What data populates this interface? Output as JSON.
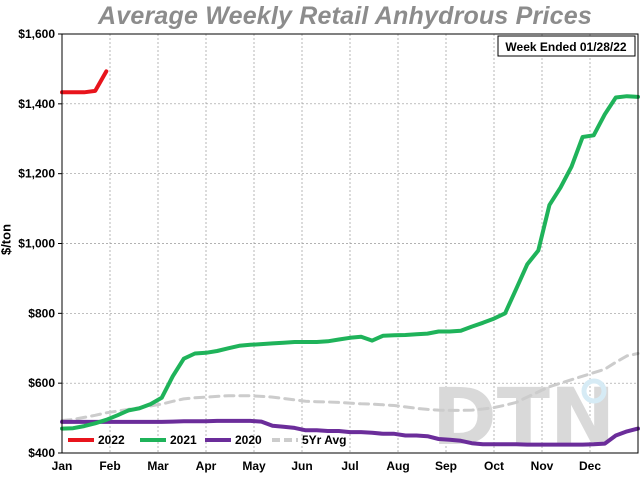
{
  "chart_data": {
    "type": "line",
    "title": "Average Weekly Retail Anhydrous Prices",
    "subtitle": "Week Ended 01/28/22",
    "ylabel": "$/ton",
    "xlabel": "",
    "ylim": [
      400,
      1600
    ],
    "y_ticks": [
      "$400",
      "$600",
      "$800",
      "$1,000",
      "$1,200",
      "$1,400",
      "$1,600"
    ],
    "y_tick_values": [
      400,
      600,
      800,
      1000,
      1200,
      1400,
      1600
    ],
    "x_ticks": [
      "Jan",
      "Feb",
      "Mar",
      "Apr",
      "May",
      "Jun",
      "Jul",
      "Aug",
      "Sep",
      "Oct",
      "Nov",
      "Dec"
    ],
    "x_range_weeks": [
      1,
      53
    ],
    "grid": true,
    "legend_position": "bottom-left",
    "watermark": "DTN",
    "series": [
      {
        "name": "2022",
        "color": "#e8141c",
        "dashed": false,
        "x": [
          1,
          2,
          3,
          4,
          5
        ],
        "values": [
          1433,
          1433,
          1433,
          1437,
          1493
        ]
      },
      {
        "name": "2021",
        "color": "#1fb35a",
        "dashed": false,
        "x": [
          1,
          2,
          3,
          4,
          5,
          6,
          7,
          8,
          9,
          10,
          11,
          12,
          13,
          14,
          15,
          16,
          17,
          18,
          19,
          20,
          21,
          22,
          23,
          24,
          25,
          26,
          27,
          28,
          29,
          30,
          31,
          32,
          33,
          34,
          35,
          36,
          37,
          38,
          39,
          40,
          41,
          42,
          43,
          44,
          45,
          46,
          47,
          48,
          49,
          50,
          51,
          52,
          53
        ],
        "values": [
          470,
          471,
          477,
          485,
          495,
          508,
          522,
          528,
          540,
          558,
          620,
          670,
          685,
          687,
          692,
          700,
          707,
          710,
          712,
          714,
          716,
          718,
          718,
          718,
          720,
          725,
          730,
          733,
          722,
          736,
          737,
          738,
          740,
          742,
          748,
          748,
          750,
          762,
          773,
          785,
          800,
          870,
          940,
          980,
          1110,
          1160,
          1220,
          1305,
          1310,
          1370,
          1418,
          1422,
          1420
        ]
      },
      {
        "name": "2020",
        "color": "#6b2d9a",
        "dashed": false,
        "x": [
          1,
          2,
          3,
          4,
          5,
          6,
          7,
          8,
          9,
          10,
          11,
          12,
          13,
          14,
          15,
          16,
          17,
          18,
          19,
          20,
          21,
          22,
          23,
          24,
          25,
          26,
          27,
          28,
          29,
          30,
          31,
          32,
          33,
          34,
          35,
          36,
          37,
          38,
          39,
          40,
          41,
          42,
          43,
          44,
          45,
          46,
          47,
          48,
          49,
          50,
          51,
          52,
          53
        ],
        "values": [
          489,
          489,
          489,
          489,
          489,
          489,
          489,
          489,
          489,
          489,
          490,
          491,
          491,
          491,
          492,
          492,
          492,
          492,
          490,
          478,
          475,
          472,
          465,
          465,
          463,
          463,
          460,
          460,
          458,
          455,
          455,
          450,
          450,
          448,
          440,
          438,
          435,
          428,
          425,
          425,
          425,
          425,
          424,
          424,
          424,
          424,
          424,
          424,
          425,
          427,
          450,
          462,
          470
        ]
      },
      {
        "name": "5Yr Avg",
        "color": "#cccccc",
        "dashed": true,
        "x": [
          1,
          2,
          3,
          4,
          5,
          6,
          7,
          8,
          9,
          10,
          11,
          12,
          13,
          14,
          15,
          16,
          17,
          18,
          19,
          20,
          21,
          22,
          23,
          24,
          25,
          26,
          27,
          28,
          29,
          30,
          31,
          32,
          33,
          34,
          35,
          36,
          37,
          38,
          39,
          40,
          41,
          42,
          43,
          44,
          45,
          46,
          47,
          48,
          49,
          50,
          51,
          52,
          53
        ],
        "values": [
          493,
          496,
          502,
          508,
          515,
          520,
          525,
          530,
          535,
          540,
          548,
          555,
          558,
          560,
          562,
          564,
          564,
          564,
          562,
          560,
          556,
          552,
          548,
          547,
          546,
          545,
          543,
          541,
          540,
          538,
          536,
          532,
          528,
          525,
          523,
          522,
          522,
          523,
          526,
          530,
          537,
          545,
          560,
          575,
          590,
          600,
          610,
          620,
          630,
          640,
          660,
          678,
          685
        ]
      }
    ]
  }
}
